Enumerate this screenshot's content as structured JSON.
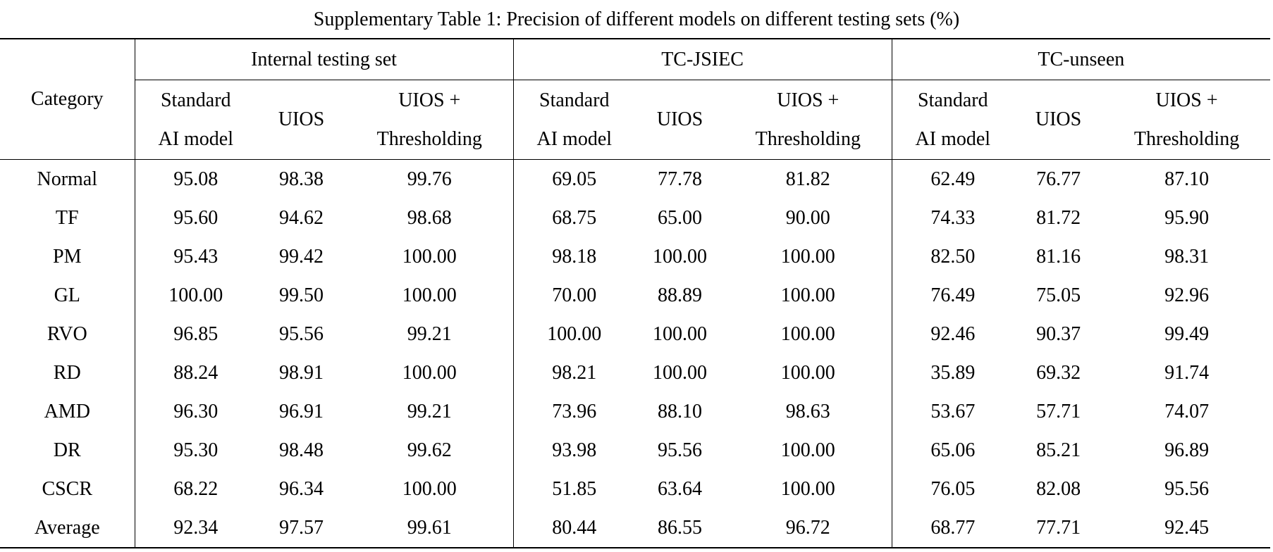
{
  "title": "Supplementary Table 1: Precision of different models on different testing sets (%)",
  "table": {
    "corner": "Category",
    "groups": [
      {
        "name": "Internal testing set",
        "columns": [
          [
            "Standard",
            "AI model"
          ],
          [
            "UIOS"
          ],
          [
            "UIOS +",
            "Thresholding"
          ]
        ]
      },
      {
        "name": "TC-JSIEC",
        "columns": [
          [
            "Standard",
            "AI model"
          ],
          [
            "UIOS"
          ],
          [
            "UIOS +",
            "Thresholding"
          ]
        ]
      },
      {
        "name": "TC-unseen",
        "columns": [
          [
            "Standard",
            "AI model"
          ],
          [
            "UIOS"
          ],
          [
            "UIOS +",
            "Thresholding"
          ]
        ]
      }
    ],
    "rows": [
      {
        "category": "Normal",
        "values": [
          "95.08",
          "98.38",
          "99.76",
          "69.05",
          "77.78",
          "81.82",
          "62.49",
          "76.77",
          "87.10"
        ]
      },
      {
        "category": "TF",
        "values": [
          "95.60",
          "94.62",
          "98.68",
          "68.75",
          "65.00",
          "90.00",
          "74.33",
          "81.72",
          "95.90"
        ]
      },
      {
        "category": "PM",
        "values": [
          "95.43",
          "99.42",
          "100.00",
          "98.18",
          "100.00",
          "100.00",
          "82.50",
          "81.16",
          "98.31"
        ]
      },
      {
        "category": "GL",
        "values": [
          "100.00",
          "99.50",
          "100.00",
          "70.00",
          "88.89",
          "100.00",
          "76.49",
          "75.05",
          "92.96"
        ]
      },
      {
        "category": "RVO",
        "values": [
          "96.85",
          "95.56",
          "99.21",
          "100.00",
          "100.00",
          "100.00",
          "92.46",
          "90.37",
          "99.49"
        ]
      },
      {
        "category": "RD",
        "values": [
          "88.24",
          "98.91",
          "100.00",
          "98.21",
          "100.00",
          "100.00",
          "35.89",
          "69.32",
          "91.74"
        ]
      },
      {
        "category": "AMD",
        "values": [
          "96.30",
          "96.91",
          "99.21",
          "73.96",
          "88.10",
          "98.63",
          "53.67",
          "57.71",
          "74.07"
        ]
      },
      {
        "category": "DR",
        "values": [
          "95.30",
          "98.48",
          "99.62",
          "93.98",
          "95.56",
          "100.00",
          "65.06",
          "85.21",
          "96.89"
        ]
      },
      {
        "category": "CSCR",
        "values": [
          "68.22",
          "96.34",
          "100.00",
          "51.85",
          "63.64",
          "100.00",
          "76.05",
          "82.08",
          "95.56"
        ]
      },
      {
        "category": "Average",
        "values": [
          "92.34",
          "97.57",
          "99.61",
          "80.44",
          "86.55",
          "96.72",
          "68.77",
          "77.71",
          "92.45"
        ]
      }
    ]
  }
}
